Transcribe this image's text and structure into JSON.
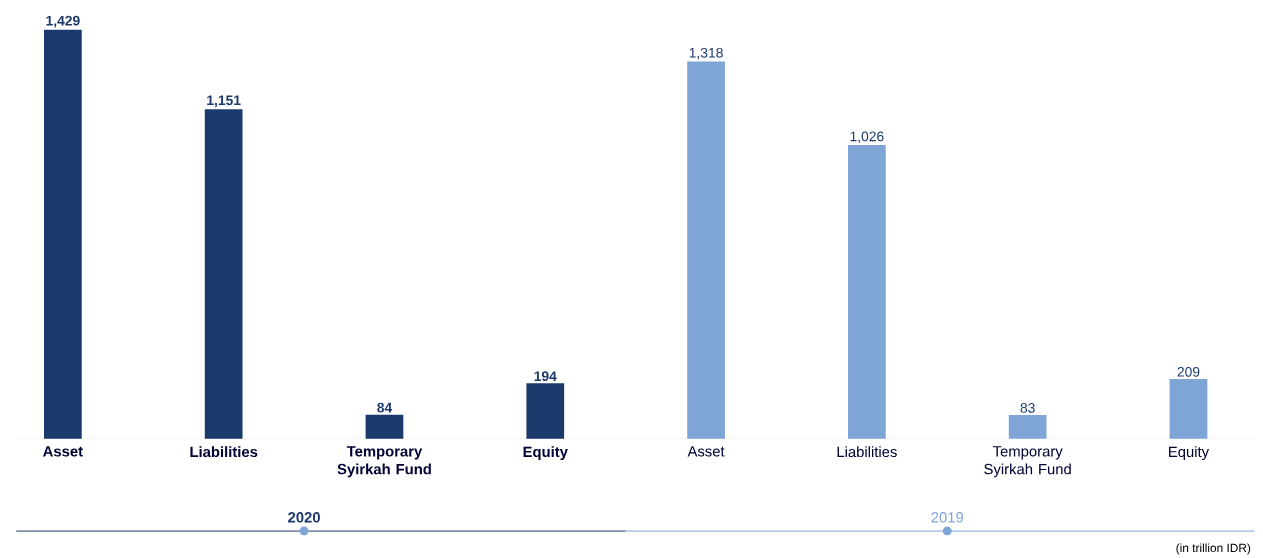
{
  "chart_data": {
    "type": "bar",
    "categories": [
      "Asset",
      "Liabilities",
      "Temporary Syirkah Fund",
      "Equity",
      "Asset",
      "Liabilities",
      "Temporary Syirkah Fund",
      "Equity"
    ],
    "series": [
      {
        "name": "2020",
        "color": "#1b3a6b",
        "values": [
          1429,
          1151,
          84,
          194,
          null,
          null,
          null,
          null
        ],
        "value_labels": [
          "1,429",
          "1,151",
          "84",
          "194",
          null,
          null,
          null,
          null
        ]
      },
      {
        "name": "2019",
        "color": "#7fa4d6",
        "values": [
          null,
          null,
          null,
          null,
          1318,
          1026,
          83,
          209
        ],
        "value_labels": [
          null,
          null,
          null,
          null,
          "1,318",
          "1,026",
          "83",
          "209"
        ]
      }
    ],
    "annotations": [
      "(in trillion IDR)"
    ]
  }
}
